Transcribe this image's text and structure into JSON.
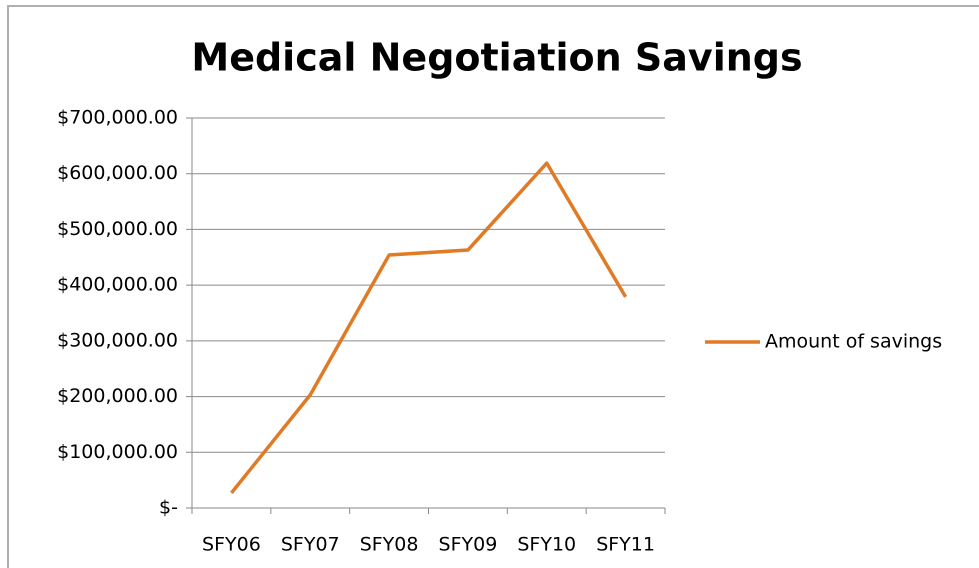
{
  "chart_data": {
    "type": "line",
    "title": "Medical Negotiation Savings",
    "categories": [
      "SFY06",
      "SFY07",
      "SFY08",
      "SFY09",
      "SFY10",
      "SFY11"
    ],
    "series": [
      {
        "name": "Amount of savings",
        "color": "#e07a24",
        "values": [
          27000,
          203000,
          454000,
          463000,
          619000,
          379000
        ]
      }
    ],
    "ylim": [
      0,
      700000
    ],
    "yticks": [
      {
        "value": 0,
        "label": "$-"
      },
      {
        "value": 100000,
        "label": "$100,000.00"
      },
      {
        "value": 200000,
        "label": "$200,000.00"
      },
      {
        "value": 300000,
        "label": "$300,000.00"
      },
      {
        "value": 400000,
        "label": "$400,000.00"
      },
      {
        "value": 500000,
        "label": "$500,000.00"
      },
      {
        "value": 600000,
        "label": "$600,000.00"
      },
      {
        "value": 700000,
        "label": "$700,000.00"
      }
    ],
    "grid": true,
    "legend": "right"
  }
}
